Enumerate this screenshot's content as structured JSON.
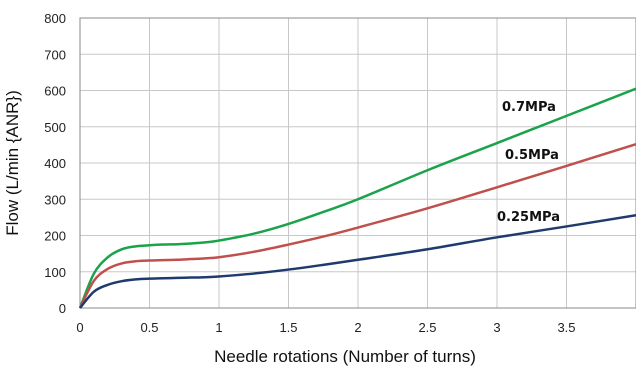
{
  "chart_data": {
    "type": "line",
    "title": "",
    "xlabel": "Needle rotations (Number of turns)",
    "ylabel": "Flow (L/min {ANR})",
    "xlim": [
      0,
      4
    ],
    "ylim": [
      0,
      800
    ],
    "x_ticks": [
      "0",
      "0.5",
      "1",
      "1.5",
      "2",
      "2.5",
      "3",
      "3.5"
    ],
    "y_ticks": [
      "0",
      "100",
      "200",
      "300",
      "400",
      "500",
      "600",
      "700",
      "800"
    ],
    "grid": true,
    "legend": "none",
    "series": [
      {
        "name": "0.7MPa",
        "color": "#1aa34a",
        "points": [
          [
            0,
            0
          ],
          [
            0.1,
            95
          ],
          [
            0.2,
            140
          ],
          [
            0.3,
            162
          ],
          [
            0.4,
            170
          ],
          [
            0.5,
            173
          ],
          [
            0.6,
            175
          ],
          [
            0.7,
            176
          ],
          [
            0.8,
            178
          ],
          [
            0.9,
            181
          ],
          [
            1.0,
            186
          ],
          [
            1.25,
            205
          ],
          [
            1.5,
            232
          ],
          [
            1.75,
            265
          ],
          [
            2.0,
            300
          ],
          [
            2.5,
            380
          ],
          [
            3.0,
            455
          ],
          [
            3.5,
            530
          ],
          [
            4.0,
            605
          ]
        ]
      },
      {
        "name": "0.5MPa",
        "color": "#c0504d",
        "points": [
          [
            0,
            0
          ],
          [
            0.1,
            75
          ],
          [
            0.2,
            108
          ],
          [
            0.3,
            123
          ],
          [
            0.4,
            129
          ],
          [
            0.5,
            131
          ],
          [
            0.6,
            132
          ],
          [
            0.7,
            133
          ],
          [
            0.8,
            135
          ],
          [
            0.9,
            137
          ],
          [
            1.0,
            140
          ],
          [
            1.25,
            155
          ],
          [
            1.5,
            175
          ],
          [
            1.75,
            197
          ],
          [
            2.0,
            222
          ],
          [
            2.5,
            275
          ],
          [
            3.0,
            333
          ],
          [
            3.5,
            392
          ],
          [
            4.0,
            452
          ]
        ]
      },
      {
        "name": "0.25MPa",
        "color": "#1f3b6e",
        "points": [
          [
            0,
            0
          ],
          [
            0.1,
            45
          ],
          [
            0.2,
            64
          ],
          [
            0.3,
            74
          ],
          [
            0.4,
            79
          ],
          [
            0.5,
            81
          ],
          [
            0.6,
            82
          ],
          [
            0.7,
            83
          ],
          [
            0.8,
            84
          ],
          [
            0.9,
            85
          ],
          [
            1.0,
            87
          ],
          [
            1.25,
            95
          ],
          [
            1.5,
            106
          ],
          [
            1.75,
            119
          ],
          [
            2.0,
            133
          ],
          [
            2.5,
            162
          ],
          [
            3.0,
            195
          ],
          [
            3.5,
            225
          ],
          [
            4.0,
            256
          ]
        ]
      }
    ]
  }
}
